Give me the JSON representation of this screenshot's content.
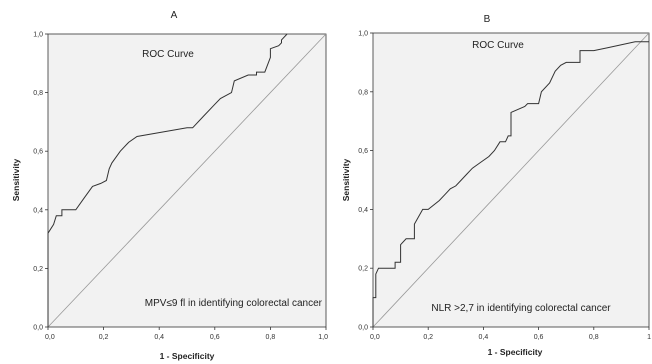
{
  "chart_data": [
    {
      "type": "line",
      "panel_label": "A",
      "title": "ROC Curve",
      "annotation": "MPV≤9 fl  in identifying colorectal cancer",
      "xlabel": "1 - Specificity",
      "ylabel": "Sensitivity",
      "xlim": [
        0,
        1
      ],
      "ylim": [
        0,
        1
      ],
      "x_ticks": [
        "0,0",
        "0,2",
        "0,4",
        "0,6",
        "0,8",
        "1,0"
      ],
      "y_ticks": [
        "0,0",
        "0,2",
        "0,4",
        "0,6",
        "0,8",
        "1,0"
      ],
      "grid": false,
      "reference_line": [
        [
          0,
          0
        ],
        [
          1,
          1
        ]
      ],
      "series": [
        {
          "x": [
            0,
            0,
            0.02,
            0.03,
            0.05,
            0.05,
            0.1,
            0.13,
            0.16,
            0.19,
            0.21,
            0.22,
            0.23,
            0.26,
            0.29,
            0.32,
            0.5,
            0.52,
            0.56,
            0.6,
            0.62,
            0.66,
            0.67,
            0.72,
            0.72,
            0.75,
            0.75,
            0.78,
            0.8,
            0.8,
            0.83,
            0.84,
            0.84,
            0.86
          ],
          "y": [
            0,
            0.32,
            0.35,
            0.38,
            0.38,
            0.4,
            0.4,
            0.44,
            0.48,
            0.49,
            0.5,
            0.54,
            0.56,
            0.6,
            0.63,
            0.65,
            0.68,
            0.68,
            0.72,
            0.76,
            0.78,
            0.8,
            0.84,
            0.86,
            0.86,
            0.86,
            0.87,
            0.87,
            0.92,
            0.95,
            0.96,
            0.97,
            0.98,
            1.0
          ]
        }
      ]
    },
    {
      "type": "line",
      "panel_label": "B",
      "title": "ROC Curve",
      "annotation": "NLR >2,7 in identifying colorectal cancer",
      "xlabel": "1 - Specificity",
      "ylabel": "Sensitivity",
      "xlim": [
        0,
        1
      ],
      "ylim": [
        0,
        1
      ],
      "x_ticks": [
        "0,0",
        "0,2",
        "0,4",
        "0,6",
        "0,8",
        "1"
      ],
      "y_ticks": [
        "0,0",
        "0,2",
        "0,4",
        "0,6",
        "0,8",
        "1,0"
      ],
      "grid": false,
      "reference_line": [
        [
          0,
          0
        ],
        [
          1,
          1
        ]
      ],
      "series": [
        {
          "x": [
            0,
            0,
            0.01,
            0.01,
            0.02,
            0.04,
            0.08,
            0.08,
            0.1,
            0.1,
            0.12,
            0.15,
            0.15,
            0.18,
            0.2,
            0.24,
            0.26,
            0.28,
            0.3,
            0.32,
            0.34,
            0.36,
            0.39,
            0.42,
            0.44,
            0.46,
            0.48,
            0.49,
            0.5,
            0.5,
            0.55,
            0.56,
            0.6,
            0.61,
            0.64,
            0.66,
            0.68,
            0.7,
            0.72,
            0.75,
            0.75,
            0.8,
            0.85,
            0.9,
            0.95,
            1.0
          ],
          "y": [
            0,
            0.1,
            0.1,
            0.18,
            0.2,
            0.2,
            0.2,
            0.22,
            0.22,
            0.28,
            0.3,
            0.3,
            0.35,
            0.4,
            0.4,
            0.43,
            0.45,
            0.47,
            0.48,
            0.5,
            0.52,
            0.54,
            0.56,
            0.58,
            0.6,
            0.63,
            0.63,
            0.65,
            0.65,
            0.73,
            0.75,
            0.76,
            0.76,
            0.8,
            0.83,
            0.87,
            0.89,
            0.9,
            0.9,
            0.9,
            0.94,
            0.94,
            0.95,
            0.96,
            0.97,
            0.97
          ]
        }
      ]
    }
  ]
}
